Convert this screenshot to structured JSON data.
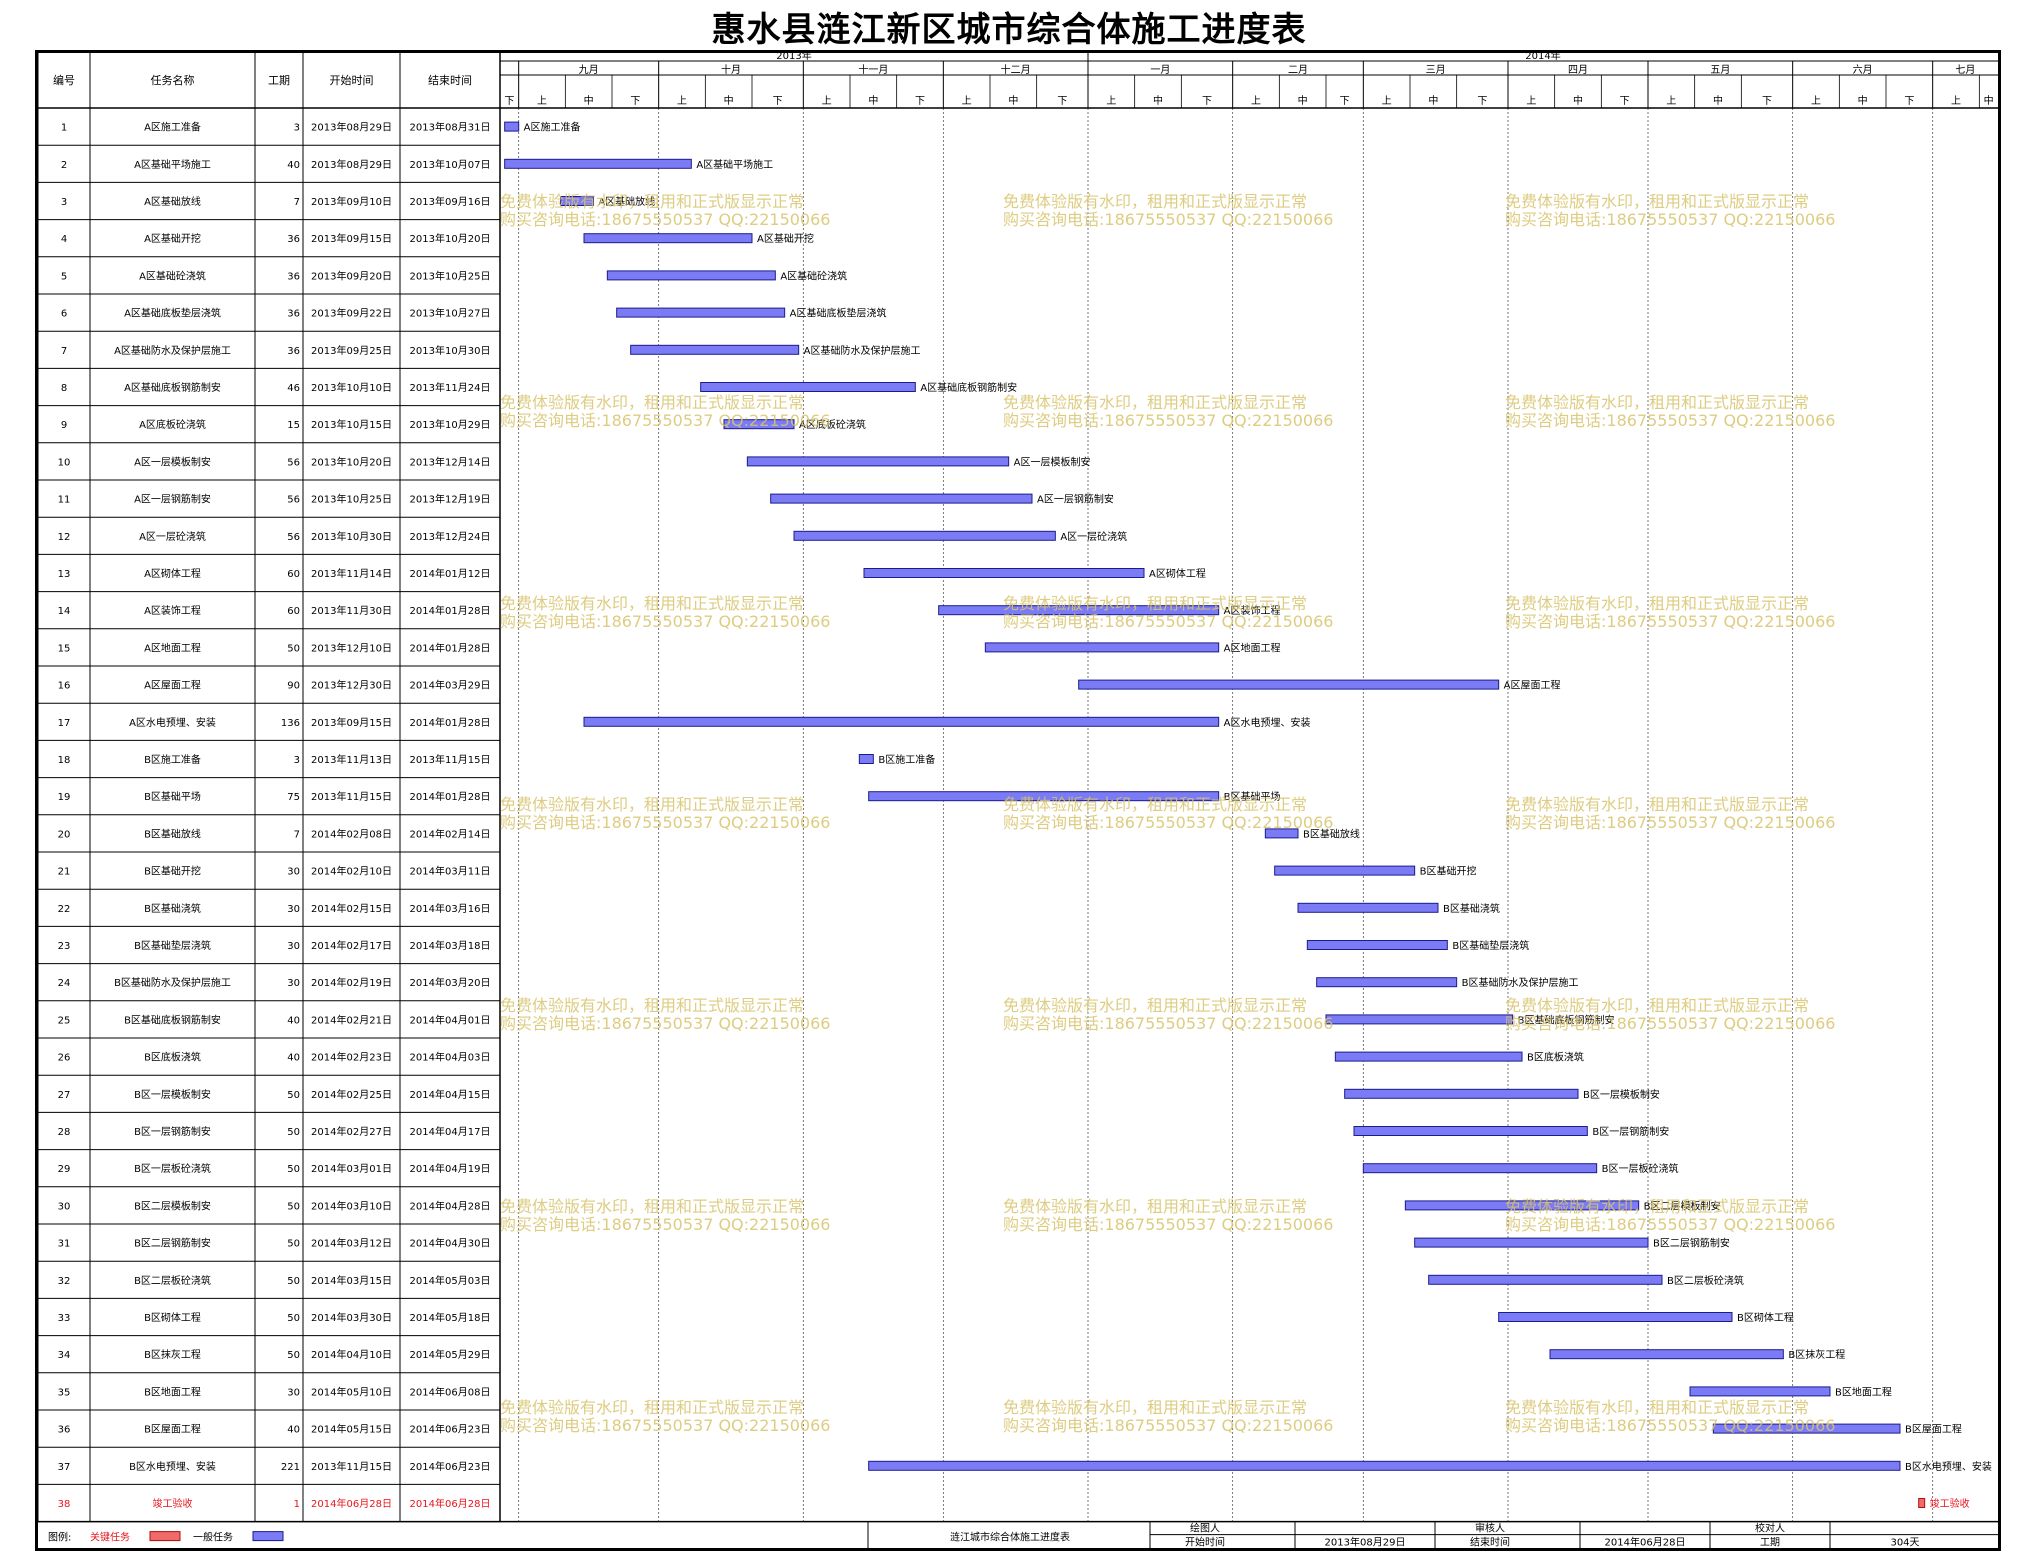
{
  "title": "惠水县涟江新区城市综合体施工进度表",
  "columns": {
    "id": "编号",
    "name": "任务名称",
    "duration": "工期",
    "start": "开始时间",
    "end": "结束时间"
  },
  "timeline": {
    "years": [
      {
        "label": "2013年",
        "start": "2013-08-28",
        "end": "2014-01-01"
      },
      {
        "label": "2014年",
        "start": "2014-01-01",
        "end": "2014-07-15"
      }
    ],
    "months": [
      {
        "label": "九月",
        "start": "2013-09-01",
        "end": "2013-10-01"
      },
      {
        "label": "十月",
        "start": "2013-10-01",
        "end": "2013-11-01"
      },
      {
        "label": "十一月",
        "start": "2013-11-01",
        "end": "2013-12-01"
      },
      {
        "label": "十二月",
        "start": "2013-12-01",
        "end": "2014-01-01"
      },
      {
        "label": "一月",
        "start": "2014-01-01",
        "end": "2014-02-01"
      },
      {
        "label": "二月",
        "start": "2014-02-01",
        "end": "2014-03-01"
      },
      {
        "label": "三月",
        "start": "2014-03-01",
        "end": "2014-04-01"
      },
      {
        "label": "四月",
        "start": "2014-04-01",
        "end": "2014-05-01"
      },
      {
        "label": "五月",
        "start": "2014-05-01",
        "end": "2014-06-01"
      },
      {
        "label": "六月",
        "start": "2014-06-01",
        "end": "2014-07-01"
      },
      {
        "label": "七月",
        "start": "2014-07-01",
        "end": "2014-07-15"
      }
    ],
    "dekad_labels": [
      "上",
      "中",
      "下"
    ],
    "leading_dekad": "下"
  },
  "chart_data": {
    "type": "gantt",
    "title": "惠水县涟江新区城市综合体施工进度表",
    "x_range": [
      "2013-08-28",
      "2014-07-15"
    ],
    "tasks": [
      {
        "id": "1",
        "name": "A区施工准备",
        "duration": "3",
        "start": "2013年08月29日",
        "end": "2013年08月31日",
        "s": "2013-08-29",
        "e": "2013-08-31",
        "critical": false
      },
      {
        "id": "2",
        "name": "A区基础平场施工",
        "duration": "40",
        "start": "2013年08月29日",
        "end": "2013年10月07日",
        "s": "2013-08-29",
        "e": "2013-10-07",
        "critical": false
      },
      {
        "id": "3",
        "name": "A区基础放线",
        "duration": "7",
        "start": "2013年09月10日",
        "end": "2013年09月16日",
        "s": "2013-09-10",
        "e": "2013-09-16",
        "critical": false
      },
      {
        "id": "4",
        "name": "A区基础开挖",
        "duration": "36",
        "start": "2013年09月15日",
        "end": "2013年10月20日",
        "s": "2013-09-15",
        "e": "2013-10-20",
        "critical": false
      },
      {
        "id": "5",
        "name": "A区基础砼浇筑",
        "duration": "36",
        "start": "2013年09月20日",
        "end": "2013年10月25日",
        "s": "2013-09-20",
        "e": "2013-10-25",
        "critical": false
      },
      {
        "id": "6",
        "name": "A区基础底板垫层浇筑",
        "duration": "36",
        "start": "2013年09月22日",
        "end": "2013年10月27日",
        "s": "2013-09-22",
        "e": "2013-10-27",
        "critical": false
      },
      {
        "id": "7",
        "name": "A区基础防水及保护层施工",
        "duration": "36",
        "start": "2013年09月25日",
        "end": "2013年10月30日",
        "s": "2013-09-25",
        "e": "2013-10-30",
        "critical": false
      },
      {
        "id": "8",
        "name": "A区基础底板钢筋制安",
        "duration": "46",
        "start": "2013年10月10日",
        "end": "2013年11月24日",
        "s": "2013-10-10",
        "e": "2013-11-24",
        "critical": false
      },
      {
        "id": "9",
        "name": "A区底板砼浇筑",
        "duration": "15",
        "start": "2013年10月15日",
        "end": "2013年10月29日",
        "s": "2013-10-15",
        "e": "2013-10-29",
        "critical": false
      },
      {
        "id": "10",
        "name": "A区一层模板制安",
        "duration": "56",
        "start": "2013年10月20日",
        "end": "2013年12月14日",
        "s": "2013-10-20",
        "e": "2013-12-14",
        "critical": false
      },
      {
        "id": "11",
        "name": "A区一层钢筋制安",
        "duration": "56",
        "start": "2013年10月25日",
        "end": "2013年12月19日",
        "s": "2013-10-25",
        "e": "2013-12-19",
        "critical": false
      },
      {
        "id": "12",
        "name": "A区一层砼浇筑",
        "duration": "56",
        "start": "2013年10月30日",
        "end": "2013年12月24日",
        "s": "2013-10-30",
        "e": "2013-12-24",
        "critical": false
      },
      {
        "id": "13",
        "name": "A区砌体工程",
        "duration": "60",
        "start": "2013年11月14日",
        "end": "2014年01月12日",
        "s": "2013-11-14",
        "e": "2014-01-12",
        "critical": false
      },
      {
        "id": "14",
        "name": "A区装饰工程",
        "duration": "60",
        "start": "2013年11月30日",
        "end": "2014年01月28日",
        "s": "2013-11-30",
        "e": "2014-01-28",
        "critical": false
      },
      {
        "id": "15",
        "name": "A区地面工程",
        "duration": "50",
        "start": "2013年12月10日",
        "end": "2014年01月28日",
        "s": "2013-12-10",
        "e": "2014-01-28",
        "critical": false
      },
      {
        "id": "16",
        "name": "A区屋面工程",
        "duration": "90",
        "start": "2013年12月30日",
        "end": "2014年03月29日",
        "s": "2013-12-30",
        "e": "2014-03-29",
        "critical": false
      },
      {
        "id": "17",
        "name": "A区水电预埋、安装",
        "duration": "136",
        "start": "2013年09月15日",
        "end": "2014年01月28日",
        "s": "2013-09-15",
        "e": "2014-01-28",
        "critical": false
      },
      {
        "id": "18",
        "name": "B区施工准备",
        "duration": "3",
        "start": "2013年11月13日",
        "end": "2013年11月15日",
        "s": "2013-11-13",
        "e": "2013-11-15",
        "critical": false
      },
      {
        "id": "19",
        "name": "B区基础平场",
        "duration": "75",
        "start": "2013年11月15日",
        "end": "2014年01月28日",
        "s": "2013-11-15",
        "e": "2014-01-28",
        "critical": false
      },
      {
        "id": "20",
        "name": "B区基础放线",
        "duration": "7",
        "start": "2014年02月08日",
        "end": "2014年02月14日",
        "s": "2014-02-08",
        "e": "2014-02-14",
        "critical": false
      },
      {
        "id": "21",
        "name": "B区基础开挖",
        "duration": "30",
        "start": "2014年02月10日",
        "end": "2014年03月11日",
        "s": "2014-02-10",
        "e": "2014-03-11",
        "critical": false
      },
      {
        "id": "22",
        "name": "B区基础浇筑",
        "duration": "30",
        "start": "2014年02月15日",
        "end": "2014年03月16日",
        "s": "2014-02-15",
        "e": "2014-03-16",
        "critical": false
      },
      {
        "id": "23",
        "name": "B区基础垫层浇筑",
        "duration": "30",
        "start": "2014年02月17日",
        "end": "2014年03月18日",
        "s": "2014-02-17",
        "e": "2014-03-18",
        "critical": false
      },
      {
        "id": "24",
        "name": "B区基础防水及保护层施工",
        "duration": "30",
        "start": "2014年02月19日",
        "end": "2014年03月20日",
        "s": "2014-02-19",
        "e": "2014-03-20",
        "critical": false
      },
      {
        "id": "25",
        "name": "B区基础底板钢筋制安",
        "duration": "40",
        "start": "2014年02月21日",
        "end": "2014年04月01日",
        "s": "2014-02-21",
        "e": "2014-04-01",
        "critical": false
      },
      {
        "id": "26",
        "name": "B区底板浇筑",
        "duration": "40",
        "start": "2014年02月23日",
        "end": "2014年04月03日",
        "s": "2014-02-23",
        "e": "2014-04-03",
        "critical": false
      },
      {
        "id": "27",
        "name": "B区一层模板制安",
        "duration": "50",
        "start": "2014年02月25日",
        "end": "2014年04月15日",
        "s": "2014-02-25",
        "e": "2014-04-15",
        "critical": false
      },
      {
        "id": "28",
        "name": "B区一层钢筋制安",
        "duration": "50",
        "start": "2014年02月27日",
        "end": "2014年04月17日",
        "s": "2014-02-27",
        "e": "2014-04-17",
        "critical": false
      },
      {
        "id": "29",
        "name": "B区一层板砼浇筑",
        "duration": "50",
        "start": "2014年03月01日",
        "end": "2014年04月19日",
        "s": "2014-03-01",
        "e": "2014-04-19",
        "critical": false
      },
      {
        "id": "30",
        "name": "B区二层模板制安",
        "duration": "50",
        "start": "2014年03月10日",
        "end": "2014年04月28日",
        "s": "2014-03-10",
        "e": "2014-04-28",
        "critical": false
      },
      {
        "id": "31",
        "name": "B区二层钢筋制安",
        "duration": "50",
        "start": "2014年03月12日",
        "end": "2014年04月30日",
        "s": "2014-03-12",
        "e": "2014-04-30",
        "critical": false
      },
      {
        "id": "32",
        "name": "B区二层板砼浇筑",
        "duration": "50",
        "start": "2014年03月15日",
        "end": "2014年05月03日",
        "s": "2014-03-15",
        "e": "2014-05-03",
        "critical": false
      },
      {
        "id": "33",
        "name": "B区砌体工程",
        "duration": "50",
        "start": "2014年03月30日",
        "end": "2014年05月18日",
        "s": "2014-03-30",
        "e": "2014-05-18",
        "critical": false
      },
      {
        "id": "34",
        "name": "B区抹灰工程",
        "duration": "50",
        "start": "2014年04月10日",
        "end": "2014年05月29日",
        "s": "2014-04-10",
        "e": "2014-05-29",
        "critical": false
      },
      {
        "id": "35",
        "name": "B区地面工程",
        "duration": "30",
        "start": "2014年05月10日",
        "end": "2014年06月08日",
        "s": "2014-05-10",
        "e": "2014-06-08",
        "critical": false
      },
      {
        "id": "36",
        "name": "B区屋面工程",
        "duration": "40",
        "start": "2014年05月15日",
        "end": "2014年06月23日",
        "s": "2014-05-15",
        "e": "2014-06-23",
        "critical": false
      },
      {
        "id": "37",
        "name": "B区水电预埋、安装",
        "duration": "221",
        "start": "2013年11月15日",
        "end": "2014年06月23日",
        "s": "2013-11-15",
        "e": "2014-06-23",
        "critical": false
      },
      {
        "id": "38",
        "name": "竣工验收",
        "duration": "1",
        "start": "2014年06月28日",
        "end": "2014年06月28日",
        "s": "2014-06-28",
        "e": "2014-06-28",
        "critical": true
      }
    ]
  },
  "footer": {
    "legend_label": "图例:",
    "critical_label": "关键任务",
    "normal_label": "一般任务",
    "project_name": "涟江城市综合体施工进度表",
    "drawer_label": "绘图人",
    "reviewer_label": "审核人",
    "checker_label": "校对人",
    "start_label": "开始时间",
    "start_value": "2013年08月29日",
    "end_label": "结束时间",
    "end_value": "2014年06月28日",
    "duration_label": "工期",
    "duration_value": "304天"
  },
  "watermark": {
    "line1": "免费体验版有水印，租用和正式版显示正常",
    "line2": "购买咨询电话:18675550537 QQ:22150066"
  },
  "colors": {
    "bar_fill": "#7b7bf5",
    "bar_stroke": "#1c1c8c",
    "critical_fill": "#f06a6a",
    "critical_text": "#e8141c",
    "grid": "#000000",
    "watermark": "#d8c46c"
  }
}
